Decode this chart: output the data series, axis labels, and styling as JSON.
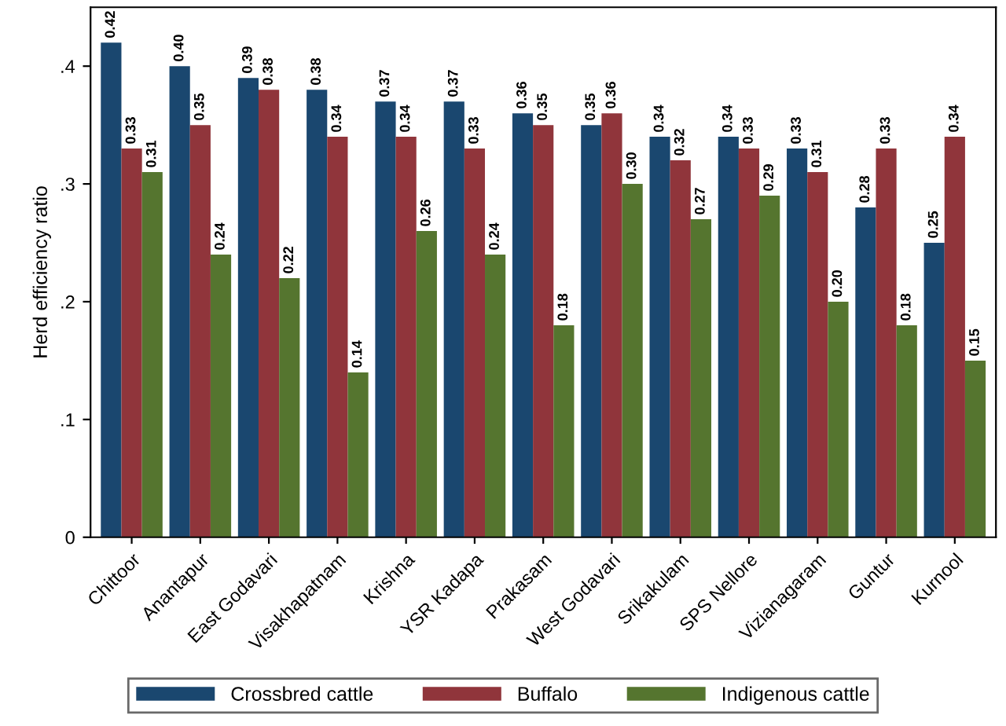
{
  "chart_data": {
    "type": "bar",
    "ylabel": "Herd efficiency ratio",
    "categories": [
      "Chittoor",
      "Anantapur",
      "East Godavari",
      "Visakhapatnam",
      "Krishna",
      "YSR Kadapa",
      "Prakasam",
      "West Godavari",
      "Srikakulam",
      "SPS Nellore",
      "Vizianagaram",
      "Guntur",
      "Kurnool"
    ],
    "series": [
      {
        "name": "Crossbred cattle",
        "color": "#1a476f",
        "values": [
          0.42,
          0.4,
          0.39,
          0.38,
          0.37,
          0.37,
          0.36,
          0.35,
          0.34,
          0.34,
          0.33,
          0.28,
          0.25
        ],
        "value_labels": [
          "0.42",
          "0.40",
          "0.39",
          "0.38",
          "0.37",
          "0.37",
          "0.36",
          "0.35",
          "0.34",
          "0.34",
          "0.33",
          "0.28",
          "0.25"
        ]
      },
      {
        "name": "Buffalo",
        "color": "#90353b",
        "values": [
          0.33,
          0.35,
          0.38,
          0.34,
          0.34,
          0.33,
          0.35,
          0.36,
          0.32,
          0.33,
          0.31,
          0.33,
          0.34
        ],
        "value_labels": [
          "0.33",
          "0.35",
          "0.38",
          "0.34",
          "0.34",
          "0.33",
          "0.35",
          "0.36",
          "0.32",
          "0.33",
          "0.31",
          "0.33",
          "0.34"
        ]
      },
      {
        "name": "Indigenous cattle",
        "color": "#55752f",
        "values": [
          0.31,
          0.24,
          0.22,
          0.14,
          0.26,
          0.24,
          0.18,
          0.3,
          0.27,
          0.29,
          0.2,
          0.18,
          0.15
        ],
        "value_labels": [
          "0.31",
          "0.24",
          "0.22",
          "0.14",
          "0.26",
          "0.24",
          "0.18",
          "0.30",
          "0.27",
          "0.29",
          "0.20",
          "0.18",
          "0.15"
        ]
      }
    ],
    "ylim": [
      0,
      0.45
    ],
    "yticks": [
      0,
      {
        "value": 0.1,
        "label": ".1"
      },
      {
        "value": 0.2,
        "label": ".2"
      },
      {
        "value": 0.3,
        "label": ".3"
      },
      {
        "value": 0.4,
        "label": ".4"
      }
    ],
    "grid": false,
    "legend": "bottom"
  }
}
